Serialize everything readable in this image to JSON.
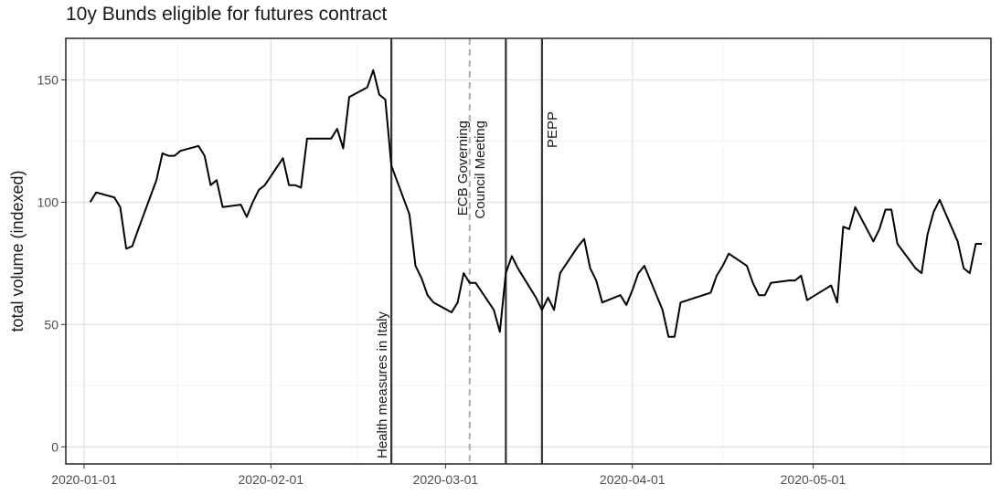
{
  "chart_data": {
    "type": "line",
    "title": "10y Bunds eligible for futures contract",
    "xlabel": "",
    "ylabel": "total volume (indexed)",
    "x_type": "date",
    "xlim": [
      "2020-01-01",
      "2020-05-29"
    ],
    "ylim": [
      -7,
      167
    ],
    "x_ticks": [
      "2020-01-01",
      "2020-02-01",
      "2020-03-01",
      "2020-04-01",
      "2020-05-01"
    ],
    "x_tick_labels": [
      "2020-01-01",
      "2020-02-01",
      "2020-03-01",
      "2020-04-01",
      "2020-05-01"
    ],
    "y_ticks": [
      0,
      50,
      100,
      150
    ],
    "y_tick_labels": [
      "0",
      "50",
      "100",
      "150"
    ],
    "grid": true,
    "legend": "none",
    "line_color": "#000000",
    "series": [
      {
        "x": [
          "2020-01-02",
          "2020-01-03",
          "2020-01-06",
          "2020-01-07",
          "2020-01-08",
          "2020-01-09",
          "2020-01-10",
          "2020-01-13",
          "2020-01-14",
          "2020-01-15",
          "2020-01-16",
          "2020-01-17",
          "2020-01-20",
          "2020-01-21",
          "2020-01-22",
          "2020-01-23",
          "2020-01-24",
          "2020-01-27",
          "2020-01-28",
          "2020-01-29",
          "2020-01-30",
          "2020-01-31",
          "2020-02-03",
          "2020-02-04",
          "2020-02-05",
          "2020-02-06",
          "2020-02-07",
          "2020-02-10",
          "2020-02-11",
          "2020-02-12",
          "2020-02-13",
          "2020-02-14",
          "2020-02-17",
          "2020-02-18",
          "2020-02-19",
          "2020-02-20",
          "2020-02-21",
          "2020-02-24",
          "2020-02-25",
          "2020-02-26",
          "2020-02-27",
          "2020-02-28",
          "2020-03-02",
          "2020-03-03",
          "2020-03-04",
          "2020-03-05",
          "2020-03-06",
          "2020-03-09",
          "2020-03-10",
          "2020-03-11",
          "2020-03-12",
          "2020-03-13",
          "2020-03-16",
          "2020-03-17",
          "2020-03-18",
          "2020-03-19",
          "2020-03-20",
          "2020-03-23",
          "2020-03-24",
          "2020-03-25",
          "2020-03-26",
          "2020-03-27",
          "2020-03-30",
          "2020-03-31",
          "2020-04-01",
          "2020-04-02",
          "2020-04-03",
          "2020-04-06",
          "2020-04-07",
          "2020-04-08",
          "2020-04-09",
          "2020-04-14",
          "2020-04-15",
          "2020-04-16",
          "2020-04-17",
          "2020-04-20",
          "2020-04-21",
          "2020-04-22",
          "2020-04-23",
          "2020-04-24",
          "2020-04-27",
          "2020-04-28",
          "2020-04-29",
          "2020-04-30",
          "2020-05-04",
          "2020-05-05",
          "2020-05-06",
          "2020-05-07",
          "2020-05-08",
          "2020-05-11",
          "2020-05-12",
          "2020-05-13",
          "2020-05-14",
          "2020-05-15",
          "2020-05-18",
          "2020-05-19",
          "2020-05-20",
          "2020-05-21",
          "2020-05-22",
          "2020-05-25",
          "2020-05-26",
          "2020-05-27",
          "2020-05-28",
          "2020-05-29"
        ],
        "y": [
          100,
          104,
          102,
          98,
          81,
          82,
          89,
          109,
          120,
          119,
          119,
          121,
          123,
          119,
          107,
          109,
          98,
          99,
          94,
          100,
          105,
          107,
          118,
          107,
          107,
          106,
          126,
          126,
          126,
          130,
          122,
          143,
          147,
          154,
          144,
          142,
          115,
          95,
          74,
          69,
          62,
          59,
          55,
          59,
          71,
          67,
          67,
          56,
          47,
          71,
          78,
          73,
          61,
          56,
          61,
          56,
          71,
          82,
          85,
          73,
          68,
          59,
          62,
          58,
          64,
          71,
          74,
          56,
          45,
          45,
          59,
          63,
          70,
          74,
          79,
          74,
          67,
          62,
          62,
          67,
          68,
          68,
          70,
          60,
          66,
          59,
          90,
          89,
          98,
          84,
          89,
          97,
          97,
          83,
          73,
          71,
          87,
          96,
          101,
          84,
          73,
          71,
          83,
          83
        ]
      }
    ],
    "vlines": [
      {
        "x": "2020-02-21",
        "label": "Health measures in Italy",
        "style": "solid",
        "color": "#333333"
      },
      {
        "x": "2020-03-05",
        "label": "ECB Governing\nCouncil Meeting",
        "style": "dashed",
        "color": "#b3b3b3"
      },
      {
        "x": "2020-03-11",
        "label": "",
        "style": "solid",
        "color": "#333333"
      },
      {
        "x": "2020-03-17",
        "label": "PEPP",
        "style": "solid",
        "color": "#333333"
      }
    ]
  }
}
